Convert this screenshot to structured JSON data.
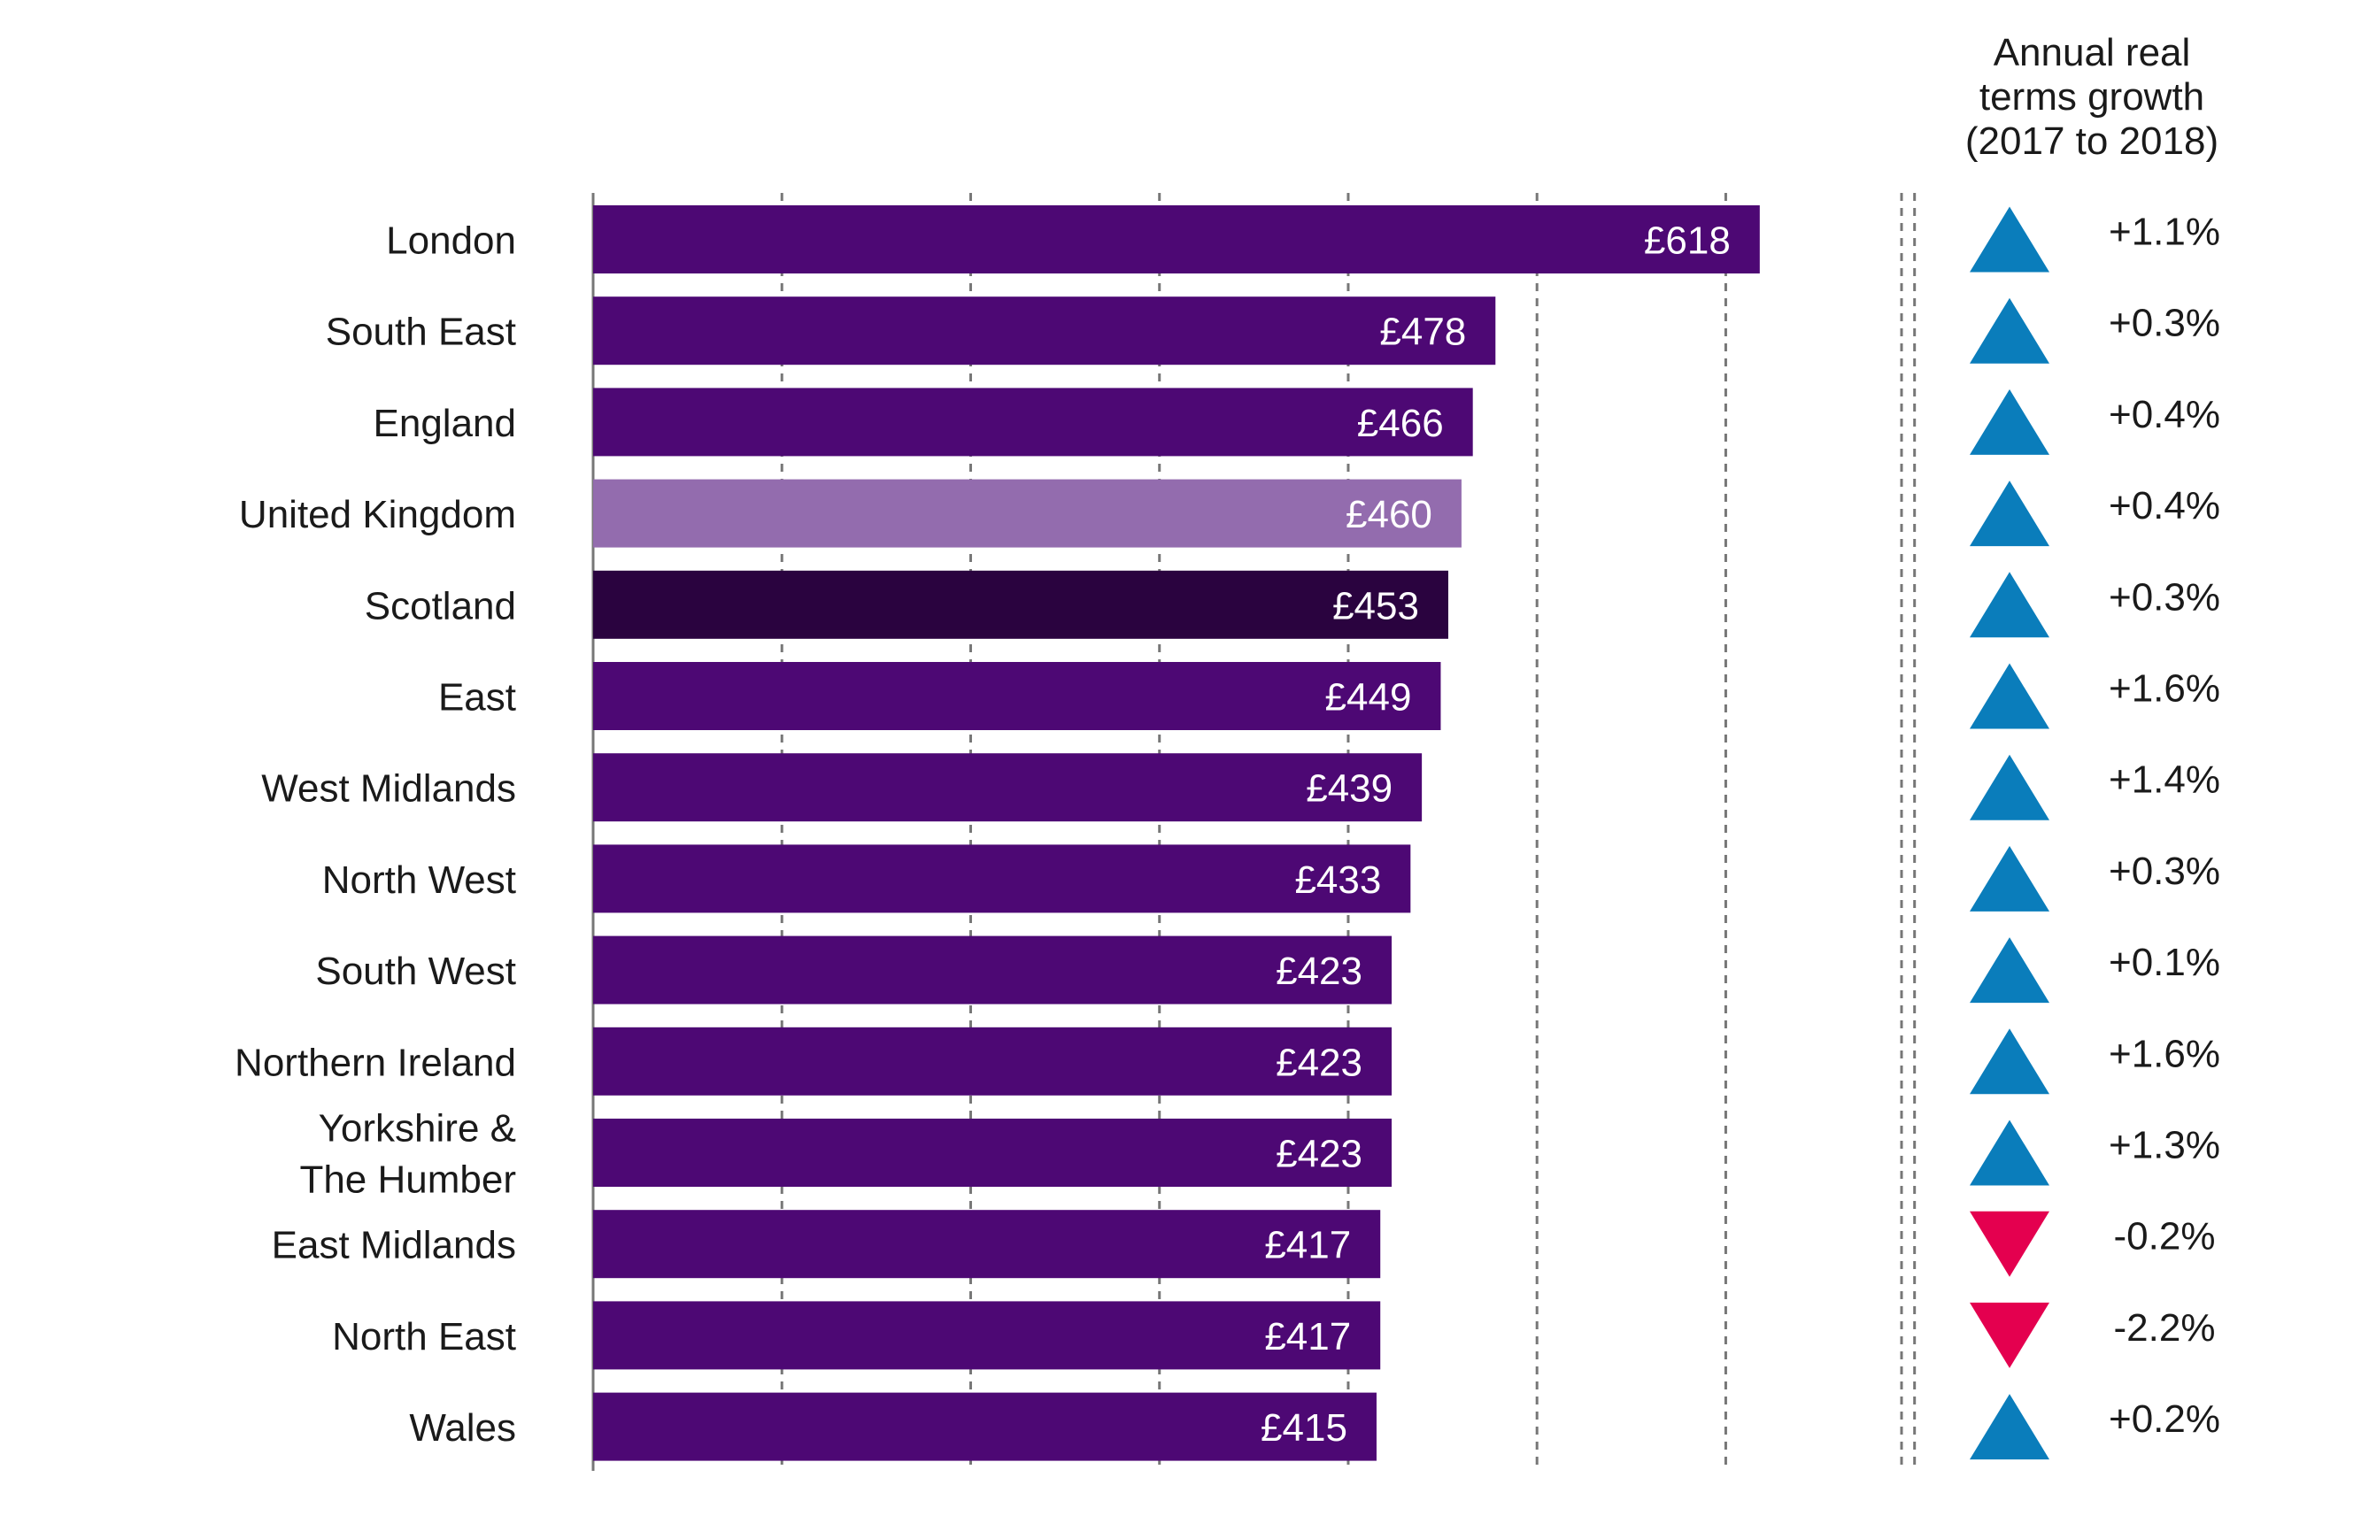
{
  "chart_data": {
    "type": "bar",
    "orientation": "horizontal",
    "categories": [
      "London",
      "South East",
      "England",
      "United Kingdom",
      "Scotland",
      "East",
      "West Midlands",
      "North West",
      "South West",
      "Northern Ireland",
      "Yorkshire & The Humber",
      "East Midlands",
      "North East",
      "Wales"
    ],
    "category_lines": [
      [
        "London"
      ],
      [
        "South East"
      ],
      [
        "England"
      ],
      [
        "United Kingdom"
      ],
      [
        "Scotland"
      ],
      [
        "East"
      ],
      [
        "West Midlands"
      ],
      [
        "North West"
      ],
      [
        "South West"
      ],
      [
        "Northern Ireland"
      ],
      [
        "Yorkshire &",
        "The Humber"
      ],
      [
        "East Midlands"
      ],
      [
        "North East"
      ],
      [
        "Wales"
      ]
    ],
    "values": [
      618,
      478,
      466,
      460,
      453,
      449,
      439,
      433,
      423,
      423,
      423,
      417,
      417,
      415
    ],
    "value_labels": [
      "£618",
      "£478",
      "£466",
      "£460",
      "£453",
      "£449",
      "£439",
      "£433",
      "£423",
      "£423",
      "£423",
      "£417",
      "£417",
      "£415"
    ],
    "bar_colors": [
      "#4d0874",
      "#4d0874",
      "#4d0874",
      "#936cae",
      "#2a033f",
      "#4d0874",
      "#4d0874",
      "#4d0874",
      "#4d0874",
      "#4d0874",
      "#4d0874",
      "#4d0874",
      "#4d0874",
      "#4d0874"
    ],
    "xlim": [
      0,
      700
    ],
    "grid": true,
    "growth_column": {
      "title_lines": [
        "Annual real",
        "terms growth",
        "(2017 to 2018)"
      ],
      "values": [
        1.1,
        0.3,
        0.4,
        0.4,
        0.3,
        1.6,
        1.4,
        0.3,
        0.1,
        1.6,
        1.3,
        -0.2,
        -2.2,
        0.2
      ],
      "labels": [
        "+1.1%",
        "+0.3%",
        "+0.4%",
        "+0.4%",
        "+0.3%",
        "+1.6%",
        "+1.4%",
        "+0.3%",
        "+0.1%",
        "+1.6%",
        "+1.3%",
        "-0.2%",
        "-2.2%",
        "+0.2%"
      ],
      "up_color": "#0a7dbb",
      "down_color": "#e4004f"
    }
  },
  "colors": {
    "bar": "#4d0874",
    "grid": "#777777",
    "text": "#1a1a1a",
    "value_label": "#ffffff"
  }
}
